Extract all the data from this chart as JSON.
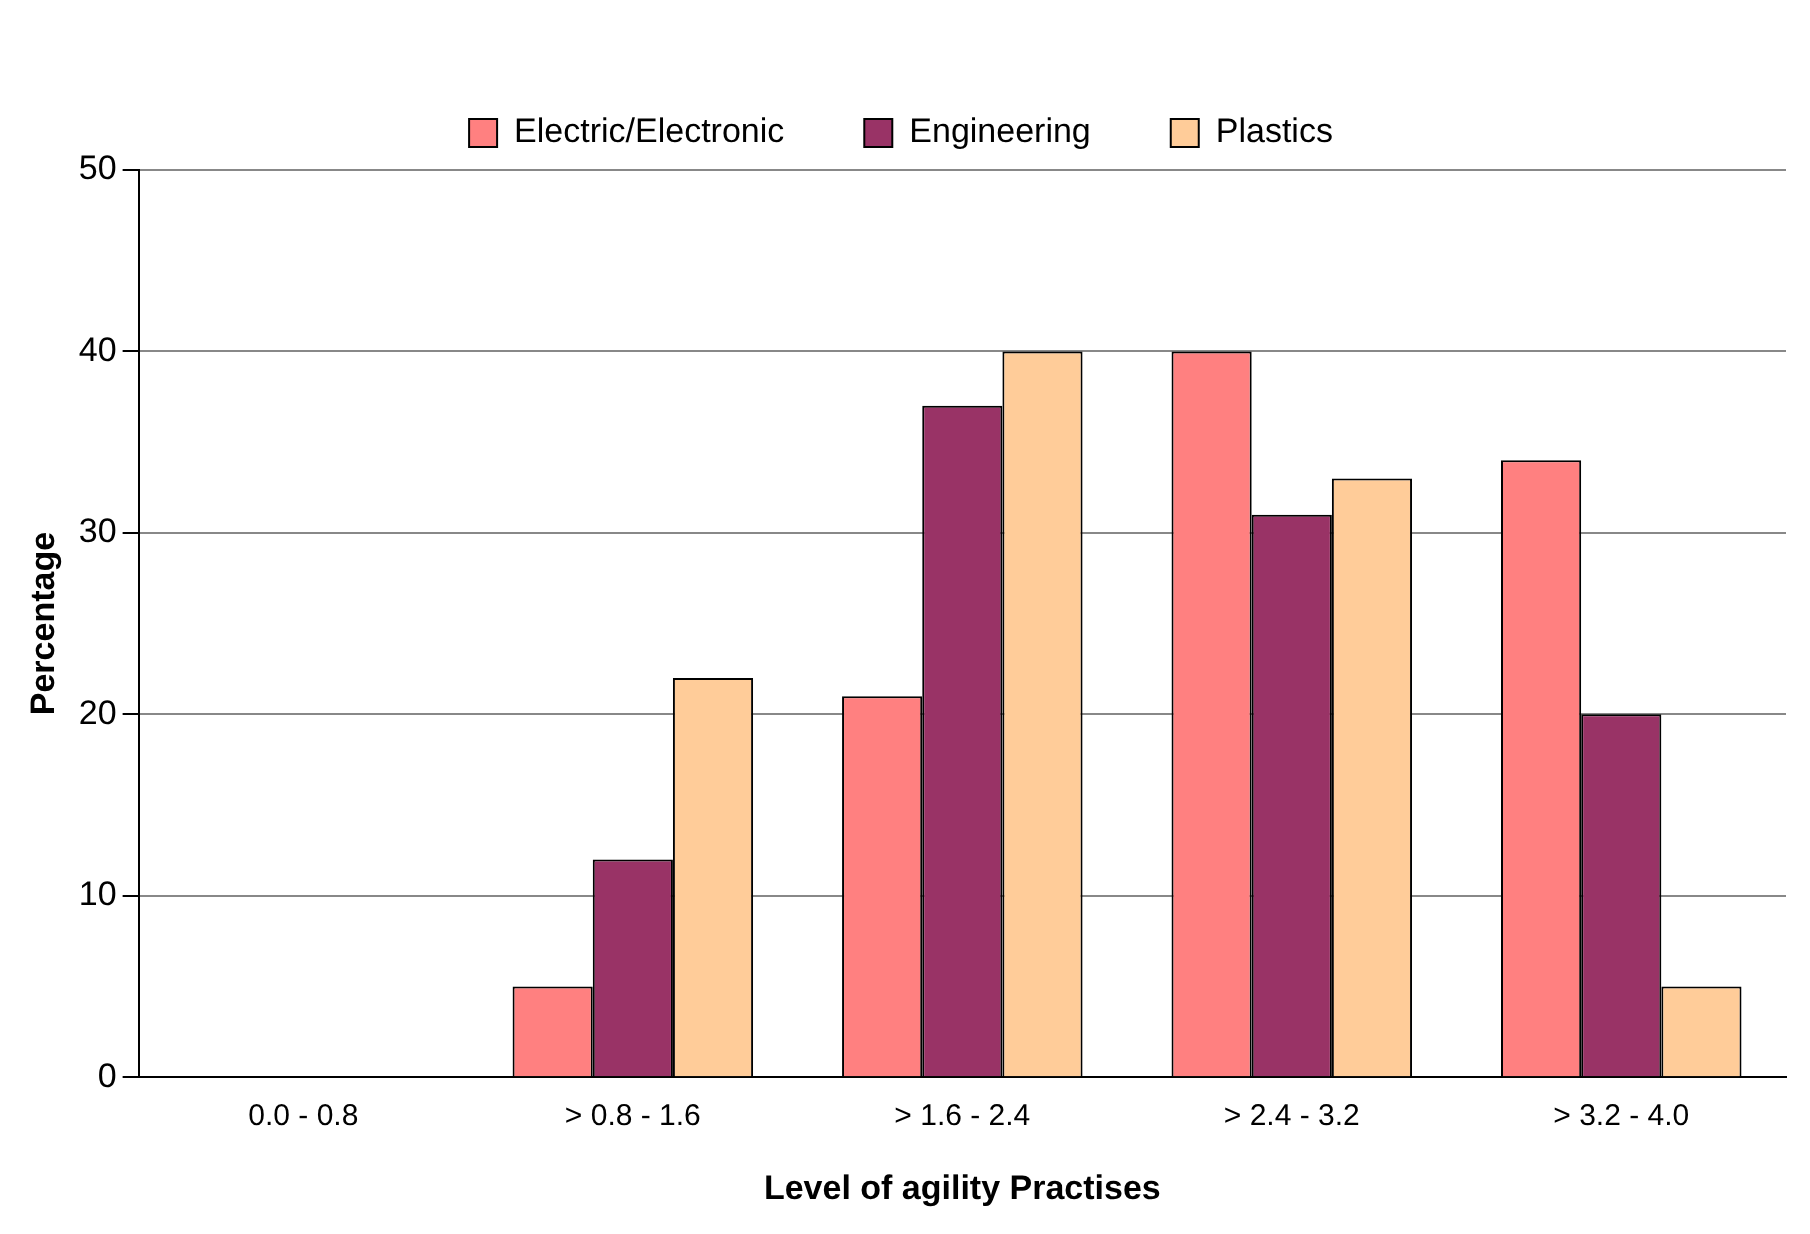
{
  "chart_data": {
    "type": "bar",
    "xlabel": "Level of agility Practises",
    "ylabel": "Percentage",
    "categories": [
      "0.0 - 0.8",
      "> 0.8 - 1.6",
      "> 1.6 - 2.4",
      "> 2.4 - 3.2",
      "> 3.2 - 4.0"
    ],
    "series": [
      {
        "name": "Electric/Electronic",
        "color": "#ff8080",
        "values": [
          0,
          5,
          21,
          40,
          34
        ]
      },
      {
        "name": "Engineering",
        "color": "#993366",
        "values": [
          0,
          12,
          37,
          31,
          20
        ]
      },
      {
        "name": "Plastics",
        "color": "#ffcc99",
        "values": [
          0,
          22,
          40,
          33,
          5
        ]
      }
    ],
    "ylim": [
      0,
      50
    ],
    "yticks": [
      0,
      10,
      20,
      30,
      40,
      50
    ],
    "grid": "y",
    "legend": "top"
  }
}
